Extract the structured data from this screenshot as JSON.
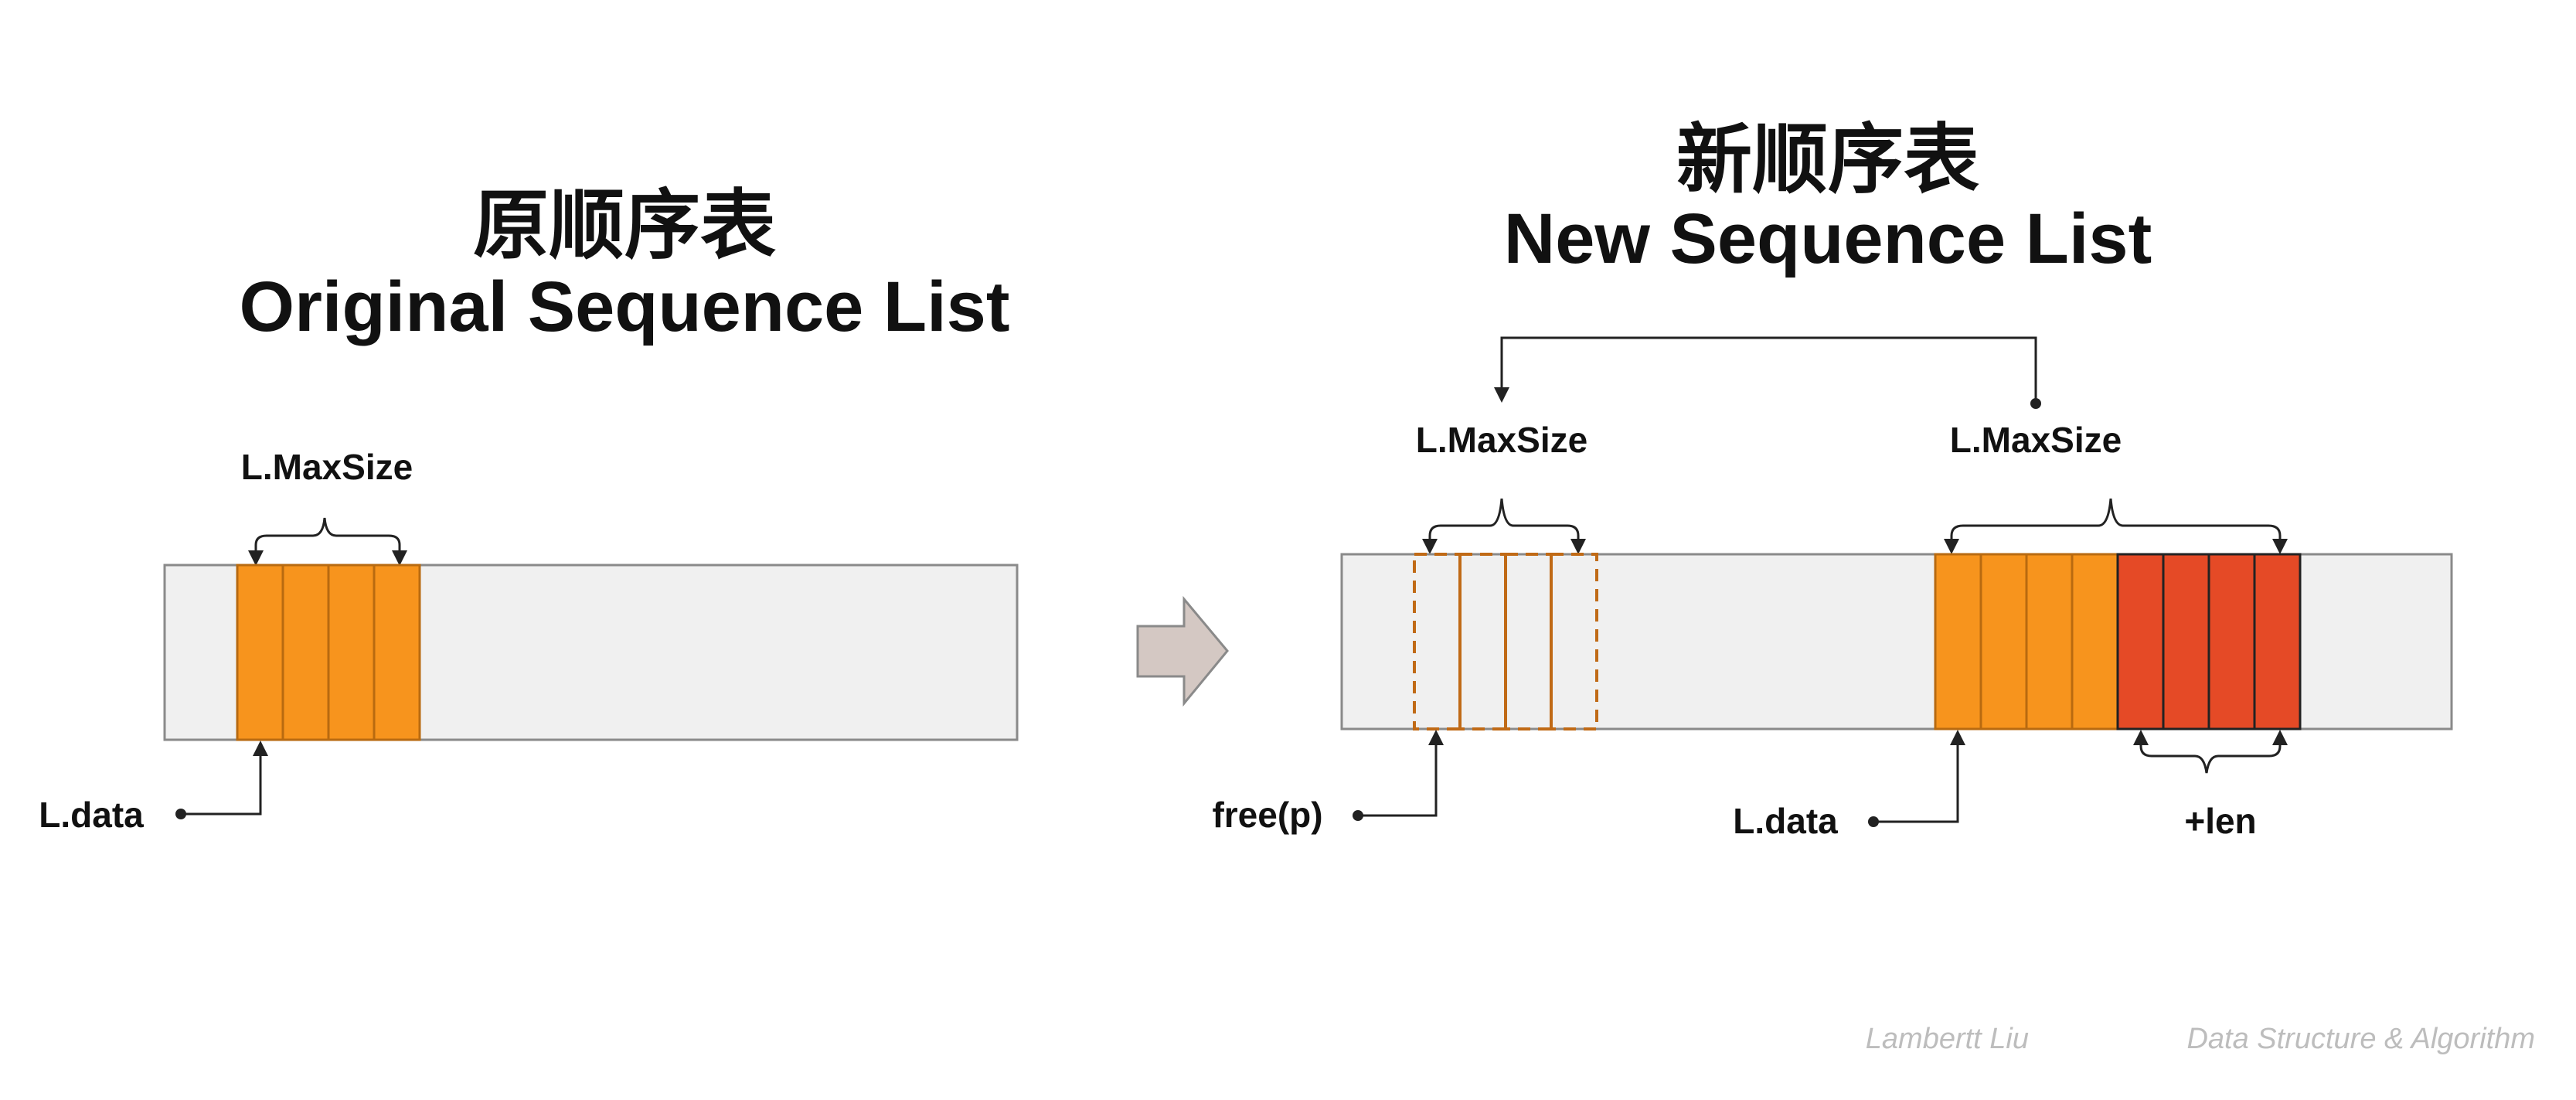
{
  "left": {
    "title_cn": "原顺序表",
    "title_en": "Original Sequence List",
    "maxsize_label": "L.MaxSize",
    "data_label": "L.data"
  },
  "right": {
    "title_cn": "新顺序表",
    "title_en": "New Sequence List",
    "old_maxsize_label": "L.MaxSize",
    "new_maxsize_label": "L.MaxSize",
    "free_label": "free(p)",
    "data_label": "L.data",
    "len_label": "+len"
  },
  "footer": {
    "author": "Lambertt Liu",
    "subject": "Data Structure & Algorithm"
  },
  "colors": {
    "original_cells": "#f7941d",
    "added_cells": "#e54a26",
    "freed_cells_outline": "#c06a16",
    "list_background": "#f0f0f0",
    "arrow": "#d4c8c3"
  },
  "icons": {
    "transition": "right-arrow-icon"
  }
}
